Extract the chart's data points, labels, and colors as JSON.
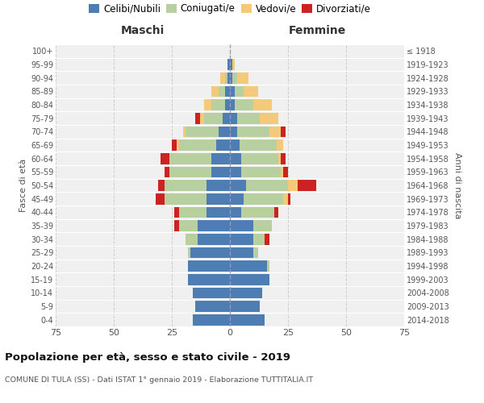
{
  "age_groups": [
    "100+",
    "95-99",
    "90-94",
    "85-89",
    "80-84",
    "75-79",
    "70-74",
    "65-69",
    "60-64",
    "55-59",
    "50-54",
    "45-49",
    "40-44",
    "35-39",
    "30-34",
    "25-29",
    "20-24",
    "15-19",
    "10-14",
    "5-9",
    "0-4"
  ],
  "birth_years": [
    "≤ 1918",
    "1919-1923",
    "1924-1928",
    "1929-1933",
    "1934-1938",
    "1939-1943",
    "1944-1948",
    "1949-1953",
    "1954-1958",
    "1959-1963",
    "1964-1968",
    "1969-1973",
    "1974-1978",
    "1979-1983",
    "1984-1988",
    "1989-1993",
    "1994-1998",
    "1999-2003",
    "2004-2008",
    "2009-2013",
    "2014-2018"
  ],
  "male_celibe": [
    0,
    1,
    1,
    2,
    2,
    3,
    5,
    6,
    8,
    8,
    10,
    10,
    10,
    14,
    14,
    17,
    18,
    18,
    16,
    15,
    16
  ],
  "male_coniugato": [
    0,
    0,
    1,
    3,
    6,
    8,
    14,
    16,
    18,
    18,
    18,
    18,
    12,
    8,
    5,
    1,
    0,
    0,
    0,
    0,
    0
  ],
  "male_vedovo": [
    0,
    0,
    2,
    3,
    3,
    2,
    1,
    1,
    0,
    0,
    0,
    0,
    0,
    0,
    0,
    0,
    0,
    0,
    0,
    0,
    0
  ],
  "male_divorziato": [
    0,
    0,
    0,
    0,
    0,
    2,
    0,
    2,
    4,
    2,
    3,
    4,
    2,
    2,
    0,
    0,
    0,
    0,
    0,
    0,
    0
  ],
  "female_celibe": [
    0,
    1,
    1,
    2,
    2,
    3,
    3,
    4,
    5,
    5,
    7,
    6,
    5,
    10,
    10,
    10,
    16,
    17,
    14,
    13,
    15
  ],
  "female_coniugato": [
    0,
    0,
    2,
    4,
    8,
    10,
    14,
    16,
    16,
    17,
    18,
    17,
    14,
    8,
    5,
    2,
    1,
    0,
    0,
    0,
    0
  ],
  "female_vedovo": [
    0,
    1,
    5,
    6,
    8,
    8,
    5,
    3,
    1,
    1,
    4,
    2,
    0,
    0,
    0,
    0,
    0,
    0,
    0,
    0,
    0
  ],
  "female_divorziato": [
    0,
    0,
    0,
    0,
    0,
    0,
    2,
    0,
    2,
    2,
    8,
    1,
    2,
    0,
    2,
    0,
    0,
    0,
    0,
    0,
    0
  ],
  "color_celibe": "#4d7db3",
  "color_coniugato": "#b8cfa0",
  "color_vedovo": "#f5c97a",
  "color_divorziato": "#cc2222",
  "title": "Popolazione per età, sesso e stato civile - 2019",
  "subtitle": "COMUNE DI TULA (SS) - Dati ISTAT 1° gennaio 2019 - Elaborazione TUTTITALIA.IT",
  "header_left": "Maschi",
  "header_right": "Femmine",
  "ylabel_left": "Fasce di età",
  "ylabel_right": "Anni di nascita",
  "xlim": 75,
  "bg_color": "#f0f0f0",
  "grid_color": "#cccccc"
}
